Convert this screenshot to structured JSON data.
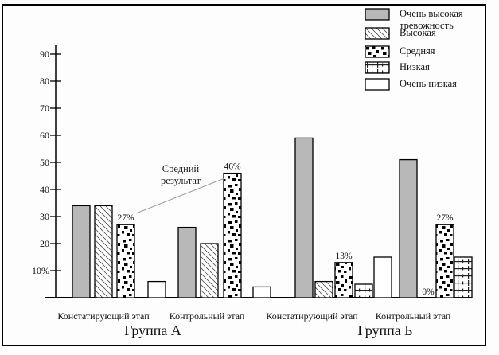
{
  "colors": {
    "bar_gray": "#b8b8b8",
    "background": "#fdfdfd",
    "border": "#000000",
    "annotation_line": "#9a9a9a"
  },
  "chart_data": {
    "type": "bar",
    "title": "",
    "xlabel": "",
    "ylabel": "",
    "ylim": [
      0,
      95
    ],
    "grid": false,
    "legend_position": "top-right",
    "yticks": [
      10,
      20,
      30,
      40,
      50,
      60,
      70,
      80,
      90
    ],
    "ytick_labels": [
      "10%",
      "20",
      "30",
      "40",
      "50",
      "60",
      "70",
      "80",
      "90"
    ],
    "series": [
      {
        "name": "Очень высокая тревожность",
        "pattern": "solid-gray"
      },
      {
        "name": "Высокая",
        "pattern": "diagonal-hatch"
      },
      {
        "name": "Средняя",
        "pattern": "speckle"
      },
      {
        "name": "Низкая",
        "pattern": "dash-tick"
      },
      {
        "name": "Очень низкая",
        "pattern": "plain-white"
      }
    ],
    "groups": [
      {
        "label": "Группа А",
        "stages": [
          {
            "label": "Констатирующий этап",
            "values": [
              34,
              34,
              27,
              null,
              6
            ],
            "bar_labels": [
              null,
              null,
              "27%",
              null,
              null
            ]
          },
          {
            "label": "Контрольный этап",
            "values": [
              26,
              20,
              46,
              null,
              4
            ],
            "bar_labels": [
              null,
              null,
              "46%",
              null,
              null
            ]
          }
        ]
      },
      {
        "label": "Группа Б",
        "stages": [
          {
            "label": "Констатирующий этап",
            "values": [
              59,
              6,
              13,
              5,
              15
            ],
            "bar_labels": [
              null,
              null,
              "13%",
              null,
              null
            ]
          },
          {
            "label": "Контрольный этап",
            "values": [
              51,
              0,
              27,
              15,
              null
            ],
            "bar_labels": [
              null,
              "0%",
              "27%",
              null,
              null
            ]
          }
        ]
      }
    ],
    "annotation": {
      "text": "Средний результат",
      "text_lines": [
        "Средний",
        "результат"
      ]
    }
  }
}
